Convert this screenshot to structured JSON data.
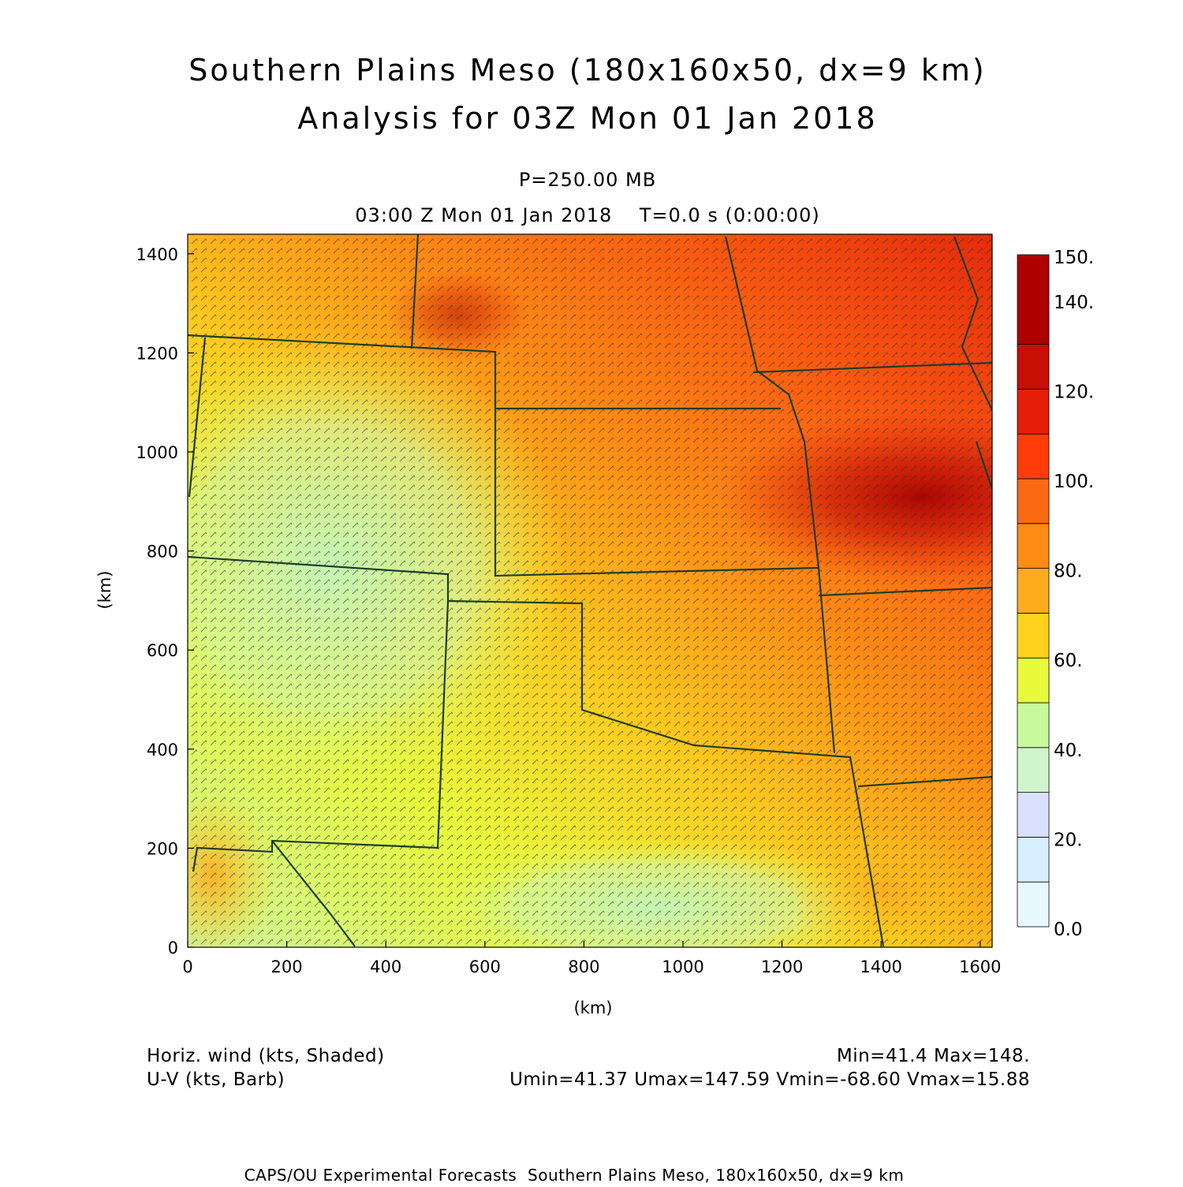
{
  "title_line1": "Southern Plains Meso (180x160x50, dx=9 km)",
  "title_line2": "Analysis for 03Z Mon 01 Jan 2018",
  "level": "P=250.00 MB",
  "time_line": "03:00 Z Mon 01 Jan 2018    T=0.0 s (0:00:00)",
  "xlabel": "(km)",
  "ylabel": "(km)",
  "x_ticks": [
    "0",
    "200",
    "400",
    "600",
    "800",
    "1000",
    "1200",
    "1400",
    "1600"
  ],
  "y_ticks": [
    "0",
    "200",
    "400",
    "600",
    "800",
    "1000",
    "1200",
    "1400"
  ],
  "colorbar": {
    "labels": [
      "0.0",
      "20.",
      "40.",
      "60.",
      "80.",
      "100.",
      "120.",
      "140.",
      "150."
    ],
    "colors": [
      "#e8f8ff",
      "#d8efff",
      "#d8e0fb",
      "#d0f5cc",
      "#c8fa9c",
      "#e7fa3c",
      "#ffd21e",
      "#ffab1e",
      "#ff8c14",
      "#fa6a12",
      "#ff3c0a",
      "#e61e0a",
      "#c80f05",
      "#af0000"
    ]
  },
  "footer": {
    "field1": "Horiz. wind (kts, Shaded)",
    "field2": "U-V (kts, Barb)",
    "minmax": "Min=41.4 Max=148.",
    "uvstats": "Umin=41.37 Umax=147.59 Vmin=-68.60 Vmax=15.88"
  },
  "credit": "CAPS/OU Experimental Forecasts  Southern Plains Meso, 180x160x50, dx=9 km"
}
